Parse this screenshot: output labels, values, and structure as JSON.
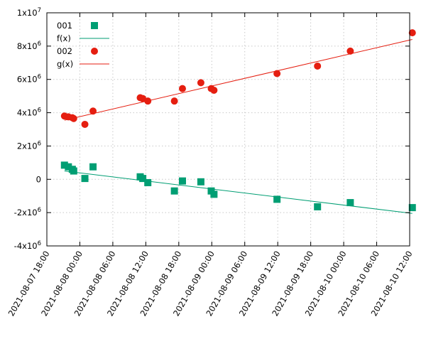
{
  "chart_data": {
    "type": "scatter",
    "title": "",
    "xlabel": "",
    "ylabel": "",
    "grid": true,
    "legend_position": "top-left",
    "xlim": [
      "2021-08-07 18:00",
      "2021-08-10 12:00"
    ],
    "ylim": [
      -4000000,
      10000000
    ],
    "x_tick_labels": [
      "2021-08-07 18:00",
      "2021-08-08 00:00",
      "2021-08-08 06:00",
      "2021-08-08 12:00",
      "2021-08-08 18:00",
      "2021-08-09 00:00",
      "2021-08-09 06:00",
      "2021-08-09 12:00",
      "2021-08-09 18:00",
      "2021-08-10 00:00",
      "2021-08-10 06:00",
      "2021-08-10 12:00"
    ],
    "y_ticks": [
      {
        "value": -4000000,
        "mantissa": "-4x10",
        "exp": "6"
      },
      {
        "value": -2000000,
        "mantissa": "-2x10",
        "exp": "6"
      },
      {
        "value": 0,
        "mantissa": "0",
        "exp": ""
      },
      {
        "value": 2000000,
        "mantissa": "2x10",
        "exp": "6"
      },
      {
        "value": 4000000,
        "mantissa": "4x10",
        "exp": "6"
      },
      {
        "value": 6000000,
        "mantissa": "6x10",
        "exp": "6"
      },
      {
        "value": 8000000,
        "mantissa": "8x10",
        "exp": "6"
      },
      {
        "value": 10000000,
        "mantissa": "1x10",
        "exp": "7"
      }
    ],
    "series": [
      {
        "name": "001",
        "marker": "square",
        "color": "#009e73",
        "x": [
          "2021-08-07 21:12",
          "2021-08-07 21:55",
          "2021-08-07 22:38",
          "2021-08-07 22:53",
          "2021-08-08 00:55",
          "2021-08-08 02:24",
          "2021-08-08 10:59",
          "2021-08-08 11:27",
          "2021-08-08 12:22",
          "2021-08-08 17:12",
          "2021-08-08 18:40",
          "2021-08-08 22:01",
          "2021-08-08 23:54",
          "2021-08-09 00:24",
          "2021-08-09 11:52",
          "2021-08-09 19:14",
          "2021-08-10 01:12",
          "2021-08-10 12:29"
        ],
        "y": [
          850000,
          750000,
          600000,
          500000,
          50000,
          750000,
          150000,
          50000,
          -200000,
          -700000,
          -100000,
          -150000,
          -700000,
          -900000,
          -1200000,
          -1650000,
          -1400000,
          -1700000
        ]
      },
      {
        "name": "f(x)",
        "style": "line",
        "color": "#009e73",
        "x": [
          "2021-08-07 21:12",
          "2021-08-10 12:29"
        ],
        "y": [
          500000,
          -2050000
        ]
      },
      {
        "name": "002",
        "marker": "circle",
        "color": "#e51e10",
        "x": [
          "2021-08-07 21:12",
          "2021-08-07 21:55",
          "2021-08-07 22:38",
          "2021-08-07 22:53",
          "2021-08-08 00:55",
          "2021-08-08 02:24",
          "2021-08-08 10:59",
          "2021-08-08 11:27",
          "2021-08-08 12:22",
          "2021-08-08 17:12",
          "2021-08-08 18:40",
          "2021-08-08 22:01",
          "2021-08-08 23:54",
          "2021-08-09 00:24",
          "2021-08-09 11:52",
          "2021-08-09 19:14",
          "2021-08-10 01:12",
          "2021-08-10 12:29"
        ],
        "y": [
          3800000,
          3750000,
          3700000,
          3650000,
          3300000,
          4100000,
          4900000,
          4850000,
          4700000,
          4700000,
          5450000,
          5800000,
          5450000,
          5350000,
          6350000,
          6800000,
          7700000,
          8800000
        ]
      },
      {
        "name": "g(x)",
        "style": "line",
        "color": "#e51e10",
        "x": [
          "2021-08-07 21:12",
          "2021-08-10 12:29"
        ],
        "y": [
          3550000,
          8400000
        ]
      }
    ]
  }
}
